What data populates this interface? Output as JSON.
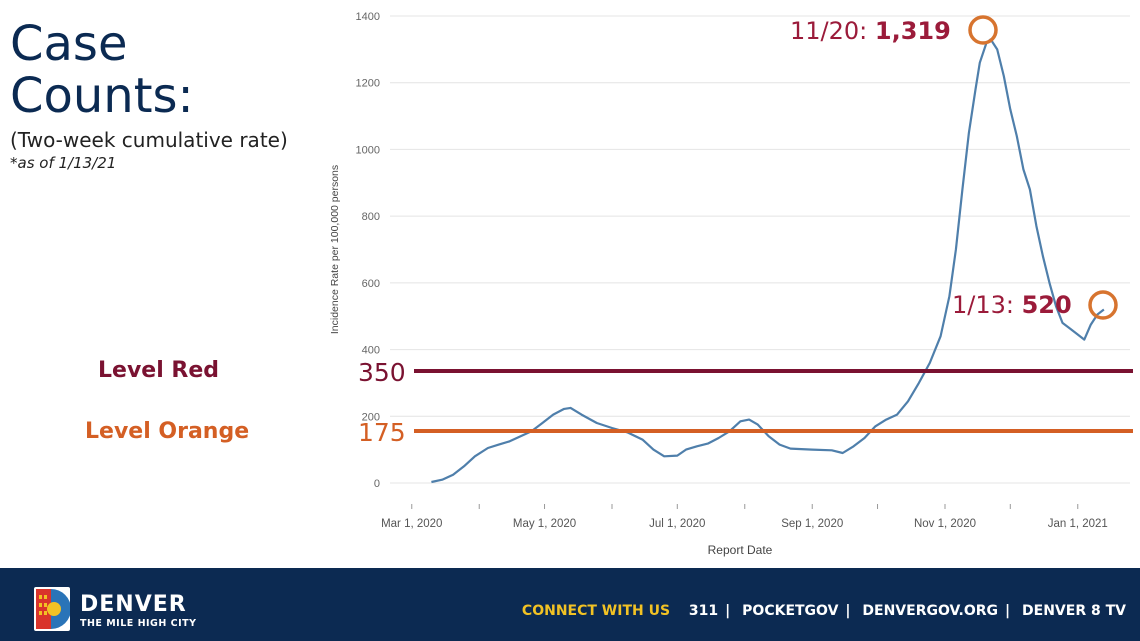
{
  "heading": {
    "title_line1": "Case",
    "title_line2": "Counts:",
    "subtitle": "(Two-week cumulative rate)",
    "as_of": "*as of 1/13/21"
  },
  "levels": {
    "red_label": "Level Red",
    "red_value": "350",
    "red_color": "#7a1231",
    "orange_label": "Level Orange",
    "orange_value": "175",
    "orange_color": "#d45f24"
  },
  "callouts": {
    "peak_date": "11/20:",
    "peak_value": "1,319",
    "latest_date": "1/13:",
    "latest_value": "520",
    "text_color": "#9b1b3a",
    "circle_color": "#d7742f"
  },
  "chart_data": {
    "type": "line",
    "xlabel": "Report Date",
    "ylabel": "Incidence Rate per 100,000 persons",
    "ylim": [
      0,
      1400
    ],
    "yticks": [
      0,
      200,
      400,
      600,
      800,
      1000,
      1200,
      1400
    ],
    "xticks": [
      "Mar 1, 2020",
      "May 1, 2020",
      "Jul 1, 2020",
      "Sep 1, 2020",
      "Nov 1, 2020",
      "Jan 1, 2021"
    ],
    "line_color": "#4f7fab",
    "grid": true,
    "thresholds": [
      {
        "label": "350",
        "value": 350
      },
      {
        "label": "175",
        "value": 175
      }
    ],
    "series": [
      {
        "points": [
          [
            "Mar 10, 2020",
            3
          ],
          [
            "Mar 15, 2020",
            10
          ],
          [
            "Mar 20, 2020",
            25
          ],
          [
            "Mar 25, 2020",
            50
          ],
          [
            "Mar 30, 2020",
            80
          ],
          [
            "Apr 5, 2020",
            105
          ],
          [
            "Apr 10, 2020",
            115
          ],
          [
            "Apr 15, 2020",
            125
          ],
          [
            "Apr 20, 2020",
            140
          ],
          [
            "Apr 25, 2020",
            155
          ],
          [
            "Apr 30, 2020",
            180
          ],
          [
            "May 5, 2020",
            205
          ],
          [
            "May 10, 2020",
            222
          ],
          [
            "May 13, 2020",
            225
          ],
          [
            "May 18, 2020",
            205
          ],
          [
            "May 25, 2020",
            180
          ],
          [
            "Jun 1, 2020",
            165
          ],
          [
            "Jun 8, 2020",
            152
          ],
          [
            "Jun 15, 2020",
            130
          ],
          [
            "Jun 20, 2020",
            100
          ],
          [
            "Jun 25, 2020",
            80
          ],
          [
            "Jul 1, 2020",
            82
          ],
          [
            "Jul 5, 2020",
            100
          ],
          [
            "Jul 10, 2020",
            110
          ],
          [
            "Jul 15, 2020",
            118
          ],
          [
            "Jul 20, 2020",
            135
          ],
          [
            "Jul 25, 2020",
            155
          ],
          [
            "Jul 30, 2020",
            185
          ],
          [
            "Aug 3, 2020",
            190
          ],
          [
            "Aug 7, 2020",
            175
          ],
          [
            "Aug 12, 2020",
            140
          ],
          [
            "Aug 17, 2020",
            115
          ],
          [
            "Aug 22, 2020",
            103
          ],
          [
            "Sep 1, 2020",
            100
          ],
          [
            "Sep 10, 2020",
            98
          ],
          [
            "Sep 15, 2020",
            90
          ],
          [
            "Sep 20, 2020",
            110
          ],
          [
            "Sep 25, 2020",
            135
          ],
          [
            "Sep 30, 2020",
            170
          ],
          [
            "Oct 5, 2020",
            190
          ],
          [
            "Oct 10, 2020",
            205
          ],
          [
            "Oct 15, 2020",
            245
          ],
          [
            "Oct 20, 2020",
            300
          ],
          [
            "Oct 25, 2020",
            360
          ],
          [
            "Oct 30, 2020",
            440
          ],
          [
            "Nov 3, 2020",
            560
          ],
          [
            "Nov 6, 2020",
            700
          ],
          [
            "Nov 9, 2020",
            880
          ],
          [
            "Nov 12, 2020",
            1050
          ],
          [
            "Nov 15, 2020",
            1180
          ],
          [
            "Nov 17, 2020",
            1260
          ],
          [
            "Nov 20, 2020",
            1319
          ],
          [
            "Nov 22, 2020",
            1330
          ],
          [
            "Nov 25, 2020",
            1300
          ],
          [
            "Nov 28, 2020",
            1220
          ],
          [
            "Dec 1, 2020",
            1120
          ],
          [
            "Dec 4, 2020",
            1040
          ],
          [
            "Dec 7, 2020",
            940
          ],
          [
            "Dec 10, 2020",
            880
          ],
          [
            "Dec 13, 2020",
            770
          ],
          [
            "Dec 16, 2020",
            680
          ],
          [
            "Dec 19, 2020",
            600
          ],
          [
            "Dec 22, 2020",
            530
          ],
          [
            "Dec 25, 2020",
            480
          ],
          [
            "Dec 28, 2020",
            465
          ],
          [
            "Dec 31, 2020",
            450
          ],
          [
            "Jan 4, 2021",
            430
          ],
          [
            "Jan 7, 2021",
            475
          ],
          [
            "Jan 10, 2021",
            505
          ],
          [
            "Jan 13, 2021",
            520
          ]
        ]
      }
    ]
  },
  "footer": {
    "brand": "DENVER",
    "tagline": "THE MILE HIGH CITY",
    "connect": "CONNECT WITH US",
    "links": [
      "311",
      "POCKETGOV",
      "DENVERGOV.ORG",
      "DENVER 8 TV"
    ],
    "bg_color": "#0c2a52",
    "accent_color": "#f2c224"
  }
}
